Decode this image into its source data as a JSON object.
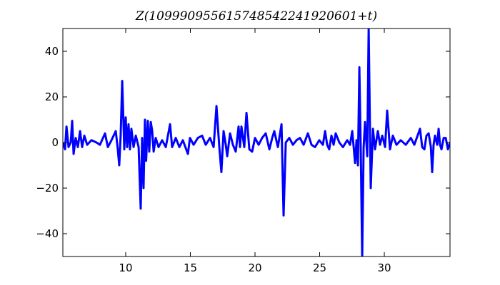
{
  "chart_data": {
    "type": "line",
    "title": "Z(109990955615748542241920601+t)",
    "x": [
      5.14,
      5.31,
      5.42,
      5.58,
      5.75,
      5.86,
      5.97,
      6.13,
      6.3,
      6.47,
      6.63,
      6.8,
      7.02,
      7.35,
      7.74,
      8.01,
      8.4,
      8.62,
      8.9,
      9.23,
      9.39,
      9.5,
      9.61,
      9.73,
      9.89,
      10.0,
      10.11,
      10.22,
      10.33,
      10.44,
      10.61,
      10.78,
      11.0,
      11.16,
      11.27,
      11.38,
      11.49,
      11.58,
      11.71,
      11.82,
      11.94,
      12.05,
      12.16,
      12.32,
      12.54,
      12.82,
      13.1,
      13.43,
      13.59,
      13.87,
      14.15,
      14.42,
      14.81,
      14.97,
      15.25,
      15.58,
      15.91,
      16.19,
      16.52,
      16.8,
      17.02,
      17.24,
      17.4,
      17.57,
      17.74,
      17.85,
      18.07,
      18.29,
      18.51,
      18.73,
      18.84,
      18.95,
      19.17,
      19.34,
      19.56,
      19.78,
      20.0,
      20.28,
      20.55,
      20.83,
      21.11,
      21.33,
      21.49,
      21.77,
      22.05,
      22.21,
      22.38,
      22.65,
      22.93,
      23.21,
      23.48,
      23.76,
      24.09,
      24.37,
      24.64,
      24.97,
      25.25,
      25.42,
      25.58,
      25.74,
      25.91,
      26.08,
      26.24,
      26.52,
      26.8,
      27.13,
      27.35,
      27.52,
      27.74,
      27.85,
      27.96,
      28.07,
      28.18,
      28.29,
      28.4,
      28.51,
      28.68,
      28.79,
      28.95,
      29.12,
      29.28,
      29.5,
      29.67,
      29.84,
      30.06,
      30.22,
      30.44,
      30.66,
      30.94,
      31.27,
      31.66,
      32.05,
      32.32,
      32.76,
      32.93,
      33.1,
      33.26,
      33.43,
      33.6,
      33.7,
      33.81,
      33.92,
      34.09,
      34.2,
      34.31,
      34.42,
      34.59,
      34.75,
      34.92,
      35.08
    ],
    "series": [
      {
        "color": "#0000ff",
        "values": [
          0,
          -3,
          7,
          -2,
          0,
          9.5,
          -5,
          2,
          -2,
          5,
          -2,
          3,
          -1,
          1,
          0,
          -1,
          4,
          -2,
          1,
          5,
          -3,
          -10,
          3,
          27,
          -3,
          11,
          -2,
          8,
          -3,
          6,
          -2,
          3,
          -2,
          -29,
          2,
          -20,
          10,
          -8,
          9.5,
          -4,
          9,
          5,
          -4,
          2,
          -2,
          1,
          -2,
          8,
          -2,
          2,
          -2,
          1,
          -5,
          2,
          -1,
          2,
          3,
          -1,
          2,
          -2,
          16,
          -2,
          -13,
          5,
          -1,
          -6,
          4,
          -1,
          -4,
          7,
          -2,
          7,
          -2,
          13,
          -3,
          -4,
          2,
          -1,
          2,
          4,
          -3,
          2,
          5,
          -2,
          8,
          -32,
          0,
          2,
          -1,
          1,
          2,
          -1,
          4,
          -1,
          -2,
          1,
          -1,
          5,
          -1,
          -3,
          3,
          -1,
          4,
          0,
          -2,
          1,
          -1,
          5,
          -9,
          1,
          -10,
          33,
          -4,
          -50,
          -2,
          9,
          -6,
          50,
          -20,
          6,
          -3,
          5,
          -1,
          3,
          -2,
          14,
          -3,
          3,
          -1,
          1,
          -1,
          2,
          -1,
          6,
          -2,
          -3,
          3,
          4,
          -2,
          -13,
          -1,
          3,
          -1,
          6,
          -1,
          -3,
          2,
          2,
          -3,
          0
        ]
      }
    ],
    "xlim": [
      5.14,
      35.08
    ],
    "xticks": [
      10,
      15,
      20,
      25,
      30
    ],
    "ylim": [
      -50,
      50
    ],
    "yticks": [
      {
        "value": -40,
        "label": "−40"
      },
      {
        "value": -20,
        "label": "−20"
      },
      0,
      20,
      40
    ]
  }
}
